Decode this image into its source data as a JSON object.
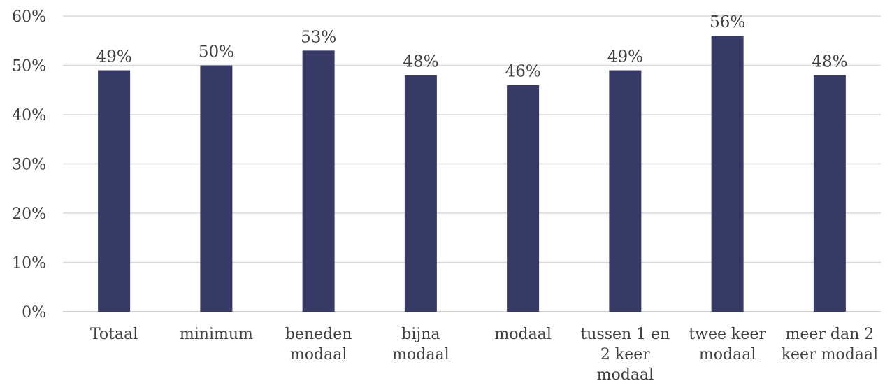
{
  "chart_data": {
    "type": "bar",
    "title": "",
    "xlabel": "",
    "ylabel": "",
    "ylim": [
      0,
      60
    ],
    "yticks": [
      "0%",
      "10%",
      "20%",
      "30%",
      "40%",
      "50%",
      "60%"
    ],
    "grid": true,
    "legend": "none",
    "bar_color": "#373a65",
    "categories": [
      [
        "Totaal"
      ],
      [
        "minimum"
      ],
      [
        "beneden",
        "modaal"
      ],
      [
        "bijna",
        "modaal"
      ],
      [
        "modaal"
      ],
      [
        "tussen 1 en",
        "2 keer",
        "modaal"
      ],
      [
        "twee keer",
        "modaal"
      ],
      [
        "meer dan 2",
        "keer modaal"
      ]
    ],
    "values": [
      49,
      50,
      53,
      48,
      46,
      49,
      56,
      48
    ],
    "data_labels": [
      "49%",
      "50%",
      "53%",
      "48%",
      "46%",
      "49%",
      "56%",
      "48%"
    ]
  }
}
